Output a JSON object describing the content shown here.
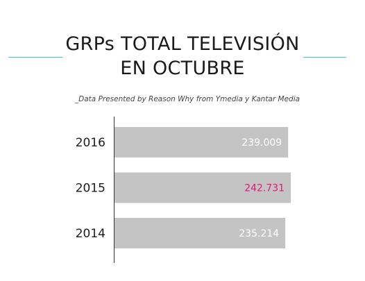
{
  "header": {
    "title_line1": "GRPs TOTAL TELEVISIÓN",
    "title_line2": "EN OCTUBRE",
    "subtitle": "_Data Presented by Reason Why from Ymedia y Kantar Media"
  },
  "colors": {
    "accent": "#3cc6d6",
    "bar": "#c4c4c4",
    "highlight": "#e0177a",
    "label": "#ffffff",
    "axis": "#333333"
  },
  "chart_data": {
    "type": "bar",
    "orientation": "horizontal",
    "categories": [
      "2016",
      "2015",
      "2014"
    ],
    "values": [
      239009,
      242731,
      235214
    ],
    "value_labels": [
      "239.009",
      "242.731",
      "235.214"
    ],
    "highlight_index": 1,
    "title": "GRPs TOTAL TELEVISIÓN EN OCTUBRE",
    "xlabel": "",
    "ylabel": "",
    "xlim": [
      0,
      255000
    ],
    "grid": false
  }
}
